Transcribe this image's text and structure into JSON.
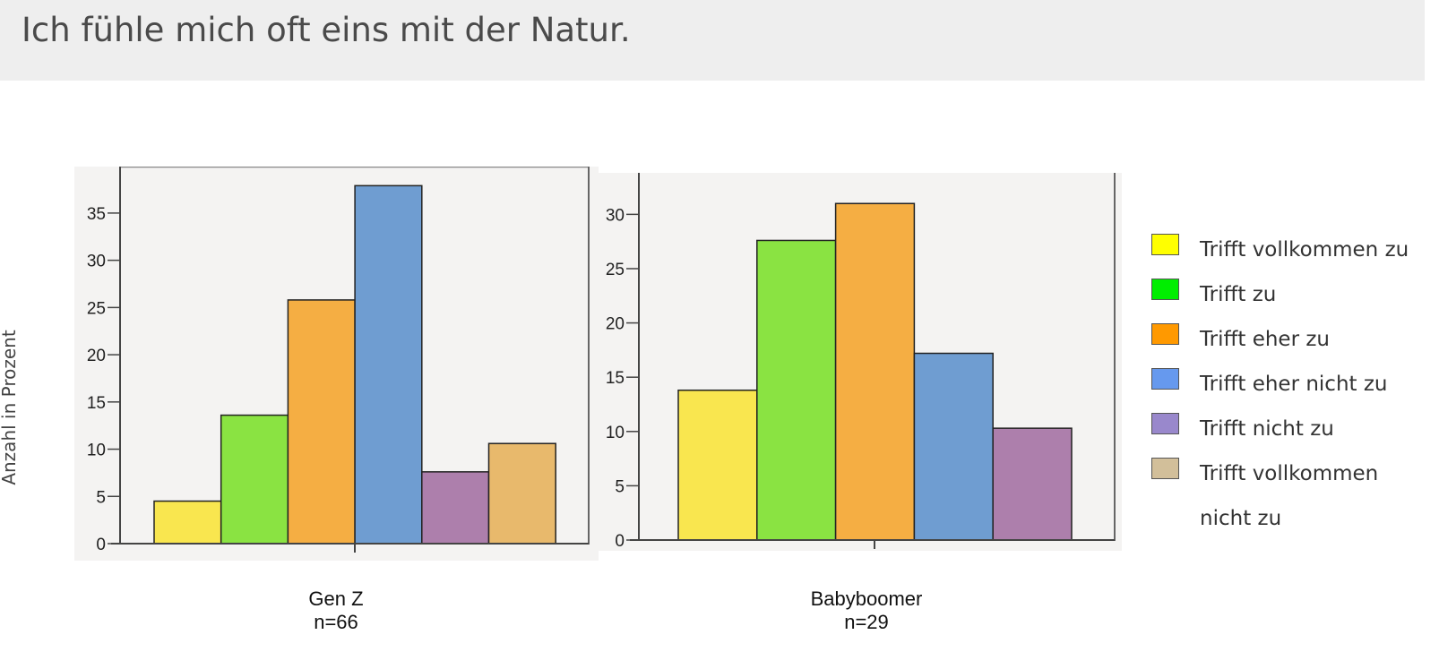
{
  "header": {
    "title": "Ich fühle mich oft eins mit der Natur."
  },
  "ylabel": "Anzahl in Prozent",
  "legend": {
    "items": [
      {
        "label": "Trifft vollkommen zu",
        "color": "#ffff00"
      },
      {
        "label": "Trifft zu",
        "color": "#00ee00"
      },
      {
        "label": "Trifft eher zu",
        "color": "#ff9900"
      },
      {
        "label": "Trifft eher nicht zu",
        "color": "#6699ee"
      },
      {
        "label": "Trifft nicht zu",
        "color": "#9988cc"
      },
      {
        "label": "Trifft vollkommen nicht zu",
        "color": "#d2bf9a"
      }
    ]
  },
  "chart_data": [
    {
      "type": "bar",
      "group": "Gen Z",
      "n_label": "n=66",
      "categories": [
        "Trifft vollkommen zu",
        "Trifft zu",
        "Trifft eher zu",
        "Trifft eher nicht zu",
        "Trifft nicht zu",
        "Trifft vollkommen nicht zu"
      ],
      "values": [
        4.5,
        13.6,
        25.8,
        37.9,
        7.6,
        10.6
      ],
      "colors": [
        "#f9e64f",
        "#8ae342",
        "#f5ae43",
        "#6f9dd1",
        "#ad7fac",
        "#e8b96c"
      ],
      "yticks": [
        0,
        5,
        10,
        15,
        20,
        25,
        30,
        35
      ],
      "ylim": [
        0,
        38.5
      ]
    },
    {
      "type": "bar",
      "group": "Babyboomer",
      "n_label": "n=29",
      "categories": [
        "Trifft vollkommen zu",
        "Trifft zu",
        "Trifft eher zu",
        "Trifft eher nicht zu",
        "Trifft nicht zu"
      ],
      "values": [
        13.8,
        27.6,
        31.0,
        17.2,
        10.3
      ],
      "colors": [
        "#f9e64f",
        "#8ae342",
        "#f5ae43",
        "#6f9dd1",
        "#ad7fac"
      ],
      "yticks": [
        0,
        5,
        10,
        15,
        20,
        25,
        30
      ],
      "ylim": [
        0,
        33
      ]
    }
  ]
}
